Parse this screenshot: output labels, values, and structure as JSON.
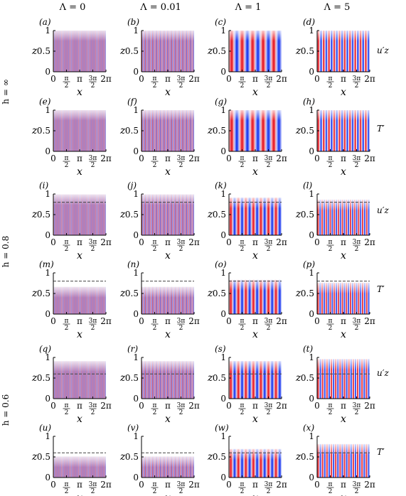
{
  "column_headers": [
    "Λ = 0",
    "Λ = 0.01",
    "Λ = 1",
    "Λ = 5"
  ],
  "row_group_labels": [
    "h = ∞",
    "h = 0.8",
    "h = 0.6"
  ],
  "row_field_labels": [
    "u′z",
    "T′",
    "u′z",
    "T′",
    "u′z",
    "T′"
  ],
  "panel_labels": [
    "(a)",
    "(b)",
    "(c)",
    "(d)",
    "(e)",
    "(f)",
    "(g)",
    "(h)",
    "(i)",
    "(j)",
    "(k)",
    "(l)",
    "(m)",
    "(n)",
    "(o)",
    "(p)",
    "(q)",
    "(r)",
    "(s)",
    "(t)",
    "(u)",
    "(v)",
    "(w)",
    "(x)"
  ],
  "axes": {
    "xlabel": "x",
    "ylabel": "z",
    "xticks": [
      "0",
      "π/2",
      "π",
      "3π/2",
      "2π"
    ],
    "yticks": [
      "0",
      "0.5",
      "1"
    ],
    "xlim": [
      0,
      6.2832
    ],
    "ylim": [
      0,
      1
    ]
  },
  "colors": {
    "positive": "#e8202a",
    "negative": "#1f3df0",
    "dashed": "#444444"
  },
  "chart_data": {
    "type": "heatmap",
    "description_of_panels": "contour fields of perturbation u'_z and T' over x in [0, 2π], z in [0,1]",
    "rows": [
      {
        "h": "∞",
        "field": "u′z",
        "interface": null,
        "top": [
          1,
          1,
          1,
          1
        ],
        "modes": [
          40,
          30,
          5,
          10
        ]
      },
      {
        "h": "∞",
        "field": "T′",
        "interface": null,
        "top": [
          1,
          1,
          1,
          1
        ],
        "modes": [
          40,
          30,
          5,
          10
        ]
      },
      {
        "h": "0.8",
        "field": "u′z",
        "interface": 0.8,
        "top": [
          0.98,
          0.98,
          0.9,
          0.85
        ],
        "modes": [
          40,
          30,
          7,
          13
        ]
      },
      {
        "h": "0.8",
        "field": "T′",
        "interface": 0.8,
        "top": [
          0.65,
          0.65,
          0.82,
          0.75
        ],
        "modes": [
          40,
          30,
          7,
          13
        ]
      },
      {
        "h": "0.6",
        "field": "u′z",
        "interface": 0.6,
        "top": [
          0.9,
          0.9,
          0.9,
          0.95
        ],
        "modes": [
          40,
          30,
          7,
          12
        ]
      },
      {
        "h": "0.6",
        "field": "T′",
        "interface": 0.6,
        "top": [
          0.5,
          0.5,
          0.68,
          0.8
        ],
        "modes": [
          40,
          30,
          7,
          12
        ]
      }
    ]
  }
}
